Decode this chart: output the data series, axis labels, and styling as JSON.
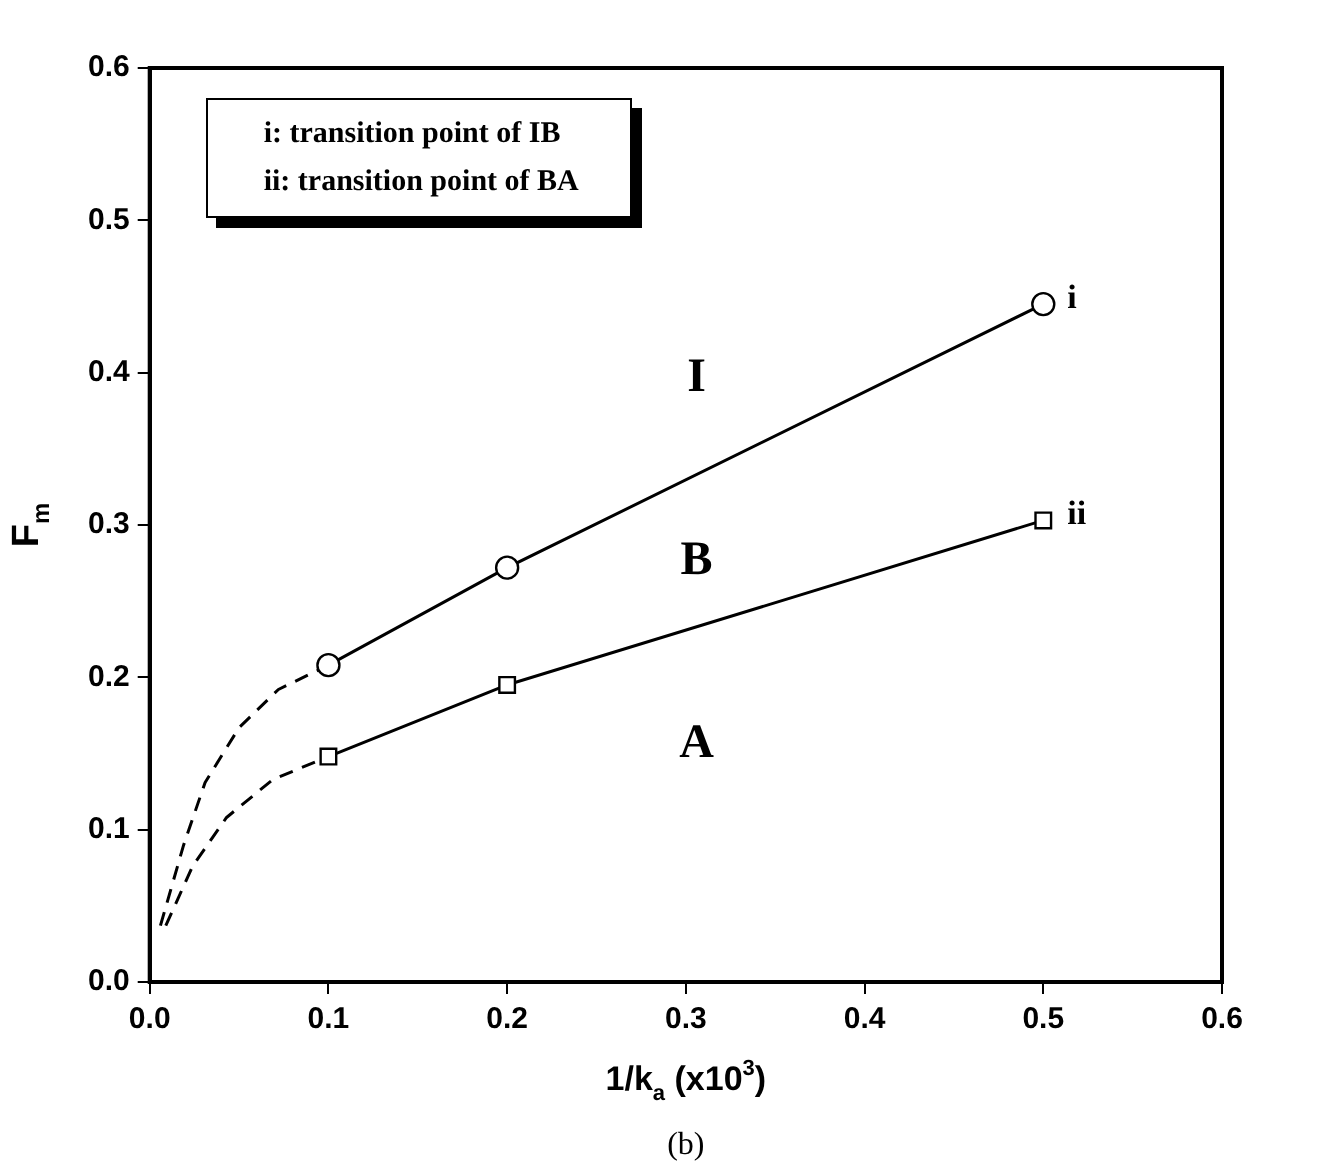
{
  "chart_data": {
    "type": "line",
    "xlabel": "1/k$_{a}$ (x10$^{3}$)",
    "ylabel": "F$_{m}$",
    "xlim": [
      0,
      0.6
    ],
    "xticks": [
      {
        "value": 0,
        "label": "0.0"
      },
      0.1,
      0.2,
      0.3,
      0.4,
      0.5,
      0.6
    ],
    "ylim": [
      0,
      0.6
    ],
    "yticks": [
      {
        "value": 0,
        "label": "0.0"
      },
      0.1,
      0.2,
      0.3,
      0.4,
      0.5,
      0.6
    ],
    "grid": false,
    "legend": false,
    "series": [
      {
        "name": "i",
        "color": "#000000",
        "marker": "circle",
        "line_style": "solid",
        "x": [
          0.1,
          0.2,
          0.5
        ],
        "values": [
          0.208,
          0.272,
          0.445
        ]
      },
      {
        "name": "ii",
        "color": "#000000",
        "marker": "square",
        "line_style": "solid",
        "x": [
          0.1,
          0.2,
          0.5
        ],
        "values": [
          0.148,
          0.195,
          0.303
        ]
      },
      {
        "color": "#000000",
        "marker": "none",
        "line_style": "dashed",
        "x": [
          0.006,
          0.019,
          0.031,
          0.05,
          0.072,
          0.1
        ],
        "values": [
          0.037,
          0.09,
          0.131,
          0.167,
          0.192,
          0.208
        ]
      },
      {
        "color": "#000000",
        "marker": "none",
        "line_style": "dashed",
        "x": [
          0.009,
          0.024,
          0.043,
          0.069,
          0.1
        ],
        "values": [
          0.037,
          0.076,
          0.108,
          0.133,
          0.148
        ]
      }
    ],
    "annotations": [
      "i: transition point of IB",
      "ii: transition point of BA",
      "I",
      "B",
      "A",
      "(b)"
    ]
  }
}
